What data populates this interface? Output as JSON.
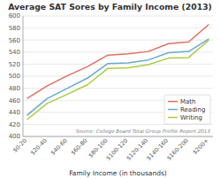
{
  "chart_data": {
    "type": "line",
    "title": "Average SAT Sores by Family Income (2013)",
    "x_label": "Family Income (in thousands)",
    "categories": [
      "$0-20",
      "$20-40",
      "$40-60",
      "$60-80",
      "$80-100",
      "$100-120",
      "$120-140",
      "$140-160",
      "$160-200",
      "$200+"
    ],
    "series": [
      {
        "name": "Math",
        "color": "#e07060",
        "values": [
          463,
          484,
          501,
          516,
          535,
          537,
          541,
          554,
          557,
          586
        ]
      },
      {
        "name": "Reading",
        "color": "#6aaacc",
        "values": [
          435,
          463,
          480,
          497,
          521,
          522,
          527,
          539,
          541,
          562
        ]
      },
      {
        "name": "Writing",
        "color": "#aacc44",
        "values": [
          428,
          455,
          470,
          486,
          513,
          514,
          519,
          530,
          531,
          560
        ]
      }
    ],
    "ylim": [
      400,
      600
    ],
    "yticks": [
      400,
      420,
      440,
      460,
      480,
      500,
      520,
      540,
      560,
      580,
      600
    ],
    "grid": true,
    "legend": "lower right",
    "annotations": [
      "Source: College Board Total Group Profile Report 2013"
    ]
  }
}
